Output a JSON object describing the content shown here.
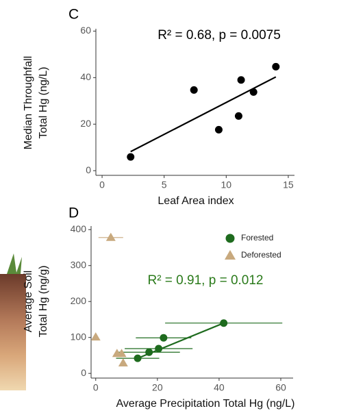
{
  "chart_data": [
    {
      "type": "scatter",
      "panel": "C",
      "annotation": "R² = 0.68, p = 0.0075",
      "annotation_color": "#000000",
      "xlabel": "Leaf Area index",
      "ylabel": [
        "Median Throughfall",
        "Total Hg (ng/L)"
      ],
      "xlim": [
        -0.5,
        15.5
      ],
      "ylim": [
        -2,
        61
      ],
      "xticks": [
        0,
        5,
        10,
        15
      ],
      "yticks": [
        0,
        20,
        40,
        60
      ],
      "series": [
        {
          "color": "#000000",
          "marker": "circle",
          "x": [
            2.3,
            7.4,
            9.4,
            11.0,
            11.2,
            12.2,
            14.0
          ],
          "y": [
            5.9,
            34.7,
            17.6,
            23.5,
            39,
            33.8,
            44.7
          ]
        }
      ],
      "fit": {
        "color": "#000000",
        "x": [
          2.3,
          14.0
        ],
        "y": [
          8.2,
          40.3
        ]
      }
    },
    {
      "type": "scatter",
      "panel": "D",
      "annotation": "R² = 0.91, p = 0.012",
      "annotation_color": "#2a7a1a",
      "xlabel": "Average Precipitation Total Hg (ng/L)",
      "ylabel": [
        "Average Soil",
        "Total Hg (ng/g)"
      ],
      "xlim": [
        -1.5,
        64
      ],
      "ylim": [
        -13,
        410
      ],
      "xticks": [
        0,
        20,
        40,
        60
      ],
      "yticks": [
        0,
        100,
        200,
        300,
        400
      ],
      "legend": "top-right",
      "series": [
        {
          "name": "Forested",
          "color": "#1e6b1e",
          "marker": "circle",
          "x": [
            13.6,
            17.3,
            20.4,
            22,
            41.5
          ],
          "y": [
            42,
            59,
            69,
            99,
            140
          ],
          "xerr": [
            7,
            10,
            11,
            9,
            19
          ]
        },
        {
          "name": "Deforested",
          "color": "#c8a97e",
          "marker": "triangle",
          "x": [
            4.9,
            0,
            6.9,
            8.4,
            8.9
          ],
          "y": [
            378,
            101,
            55,
            55,
            29
          ],
          "xerr": [
            4,
            0,
            0,
            0,
            0
          ]
        }
      ],
      "fit": {
        "color": "#1e6b1e",
        "x": [
          13.6,
          41.5
        ],
        "y": [
          42,
          140
        ]
      }
    }
  ]
}
